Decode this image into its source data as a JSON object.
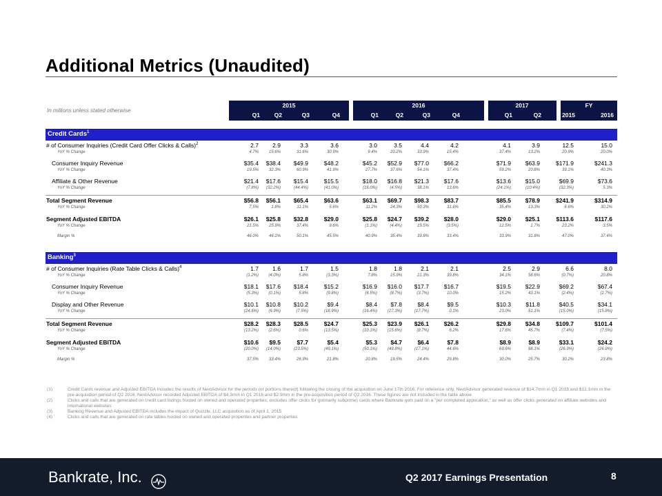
{
  "title": "Additional Metrics (Unaudited)",
  "note": "In millions unless stated otherwise",
  "header": {
    "years": [
      "2015",
      "2016",
      "2017",
      "FY"
    ],
    "quarters": [
      "Q1",
      "Q2",
      "Q3",
      "Q4",
      "Q1",
      "Q2",
      "Q3",
      "Q4",
      "Q1",
      "Q2",
      "2015",
      "2016"
    ]
  },
  "sections": [
    {
      "label": "Credit Cards",
      "sup": "1",
      "rows": [
        {
          "label": "# of Consumer Inquiries (Credit Card Offer Clicks & Calls)",
          "sup": "2",
          "style": "normal",
          "values": [
            "2.7",
            "2.9",
            "3.3",
            "3.6",
            "3.0",
            "3.5",
            "4.4",
            "4.2",
            "4.1",
            "3.9",
            "12.5",
            "15.0"
          ]
        },
        {
          "label": "YoY % Change",
          "style": "sub",
          "values": [
            "4.7%",
            "15.6%",
            "31.6%",
            "30.9%",
            "9.4%",
            "20.2%",
            "33.9%",
            "15.4%",
            "37.4%",
            "13.2%",
            "20.9%",
            "20.0%"
          ]
        },
        {
          "label": "Consumer Inquiry Revenue",
          "style": "indent",
          "values": [
            "$35.4",
            "$38.4",
            "$49.9",
            "$48.2",
            "$45.2",
            "$52.9",
            "$77.0",
            "$66.2",
            "$71.9",
            "$63.9",
            "$171.9",
            "$241.3"
          ]
        },
        {
          "label": "YoY % Change",
          "style": "sub",
          "values": [
            "19.5%",
            "32.3%",
            "60.9%",
            "41.9%",
            "27.7%",
            "37.6%",
            "54.1%",
            "37.4%",
            "59.2%",
            "20.8%",
            "39.1%",
            "40.3%"
          ]
        },
        {
          "label": "Affiliate & Other Revenue",
          "style": "indent",
          "values": [
            "$21.4",
            "$17.6",
            "$15.4",
            "$15.5",
            "$18.0",
            "$16.8",
            "$21.3",
            "$17.6",
            "$13.6",
            "$15.0",
            "$69.9",
            "$73.6"
          ]
        },
        {
          "label": "YoY % Change",
          "style": "sub",
          "values": [
            "(7.8%)",
            "(32.2%)",
            "(44.4%)",
            "(41.0%)",
            "(16.0%)",
            "(4.5%)",
            "38.1%",
            "13.6%",
            "(24.1%)",
            "(10.4%)",
            "(32.3%)",
            "5.3%"
          ]
        },
        {
          "label": "Total Segment Revenue",
          "style": "bold",
          "values": [
            "$56.8",
            "$56.1",
            "$65.4",
            "$63.6",
            "$63.1",
            "$69.7",
            "$98.3",
            "$83.7",
            "$85.5",
            "$78.9",
            "$241.9",
            "$314.9"
          ]
        },
        {
          "label": "YoY % Change",
          "style": "sub",
          "values": [
            "7.5%",
            "1.8%",
            "11.1%",
            "5.6%",
            "11.2%",
            "24.3%",
            "50.3%",
            "31.6%",
            "35.4%",
            "13.3%",
            "6.6%",
            "30.2%"
          ]
        },
        {
          "label": "Segment Adjusted EBITDA",
          "style": "bold",
          "values": [
            "$26.1",
            "$25.8",
            "$32.8",
            "$29.0",
            "$25.8",
            "$24.7",
            "$39.2",
            "$28.0",
            "$29.0",
            "$25.1",
            "$113.6",
            "$117.6"
          ]
        },
        {
          "label": "YoY % Change",
          "style": "sub",
          "values": [
            "21.5%",
            "25.9%",
            "37.4%",
            "9.6%",
            "(1.1%)",
            "(4.4%)",
            "19.5%",
            "(3.5%)",
            "12.5%",
            "1.7%",
            "23.2%",
            "3.5%"
          ]
        },
        {
          "label": "Margin %",
          "style": "sub",
          "values": [
            "46.0%",
            "46.1%",
            "50.1%",
            "45.5%",
            "40.9%",
            "35.4%",
            "39.8%",
            "33.4%",
            "33.9%",
            "31.8%",
            "47.0%",
            "37.4%"
          ]
        }
      ]
    },
    {
      "label": "Banking",
      "sup": "3",
      "rows": [
        {
          "label": "# of Consumer Inquiries (Rate Table Clicks & Calls)",
          "sup": "4",
          "style": "normal",
          "values": [
            "1.7",
            "1.6",
            "1.7",
            "1.5",
            "1.8",
            "1.8",
            "2.1",
            "2.1",
            "2.5",
            "2.9",
            "6.6",
            "8.0"
          ]
        },
        {
          "label": "YoY % Change",
          "style": "sub",
          "values": [
            "(1.2%)",
            "(4.0%)",
            "5.8%",
            "(3.3%)",
            "7.8%",
            "15.9%",
            "21.3%",
            "39.8%",
            "34.1%",
            "58.6%",
            "(0.7%)",
            "20.8%"
          ]
        },
        {
          "label": "Consumer Inquiry Revenue",
          "style": "indent",
          "values": [
            "$18.1",
            "$17.6",
            "$18.4",
            "$15.2",
            "$16.9",
            "$16.0",
            "$17.7",
            "$16.7",
            "$19.5",
            "$22.9",
            "$69.2",
            "$67.4"
          ]
        },
        {
          "label": "YoY % Change",
          "style": "sub",
          "values": [
            "(5.3%)",
            "(0.1%)",
            "5.8%",
            "(9.8%)",
            "(6.5%)",
            "(8.7%)",
            "(3.7%)",
            "10.0%",
            "15.2%",
            "43.1%",
            "(2.4%)",
            "(2.7%)"
          ]
        },
        {
          "label": "Display and Other Revenue",
          "style": "indent",
          "values": [
            "$10.1",
            "$10.8",
            "$10.2",
            "$9.4",
            "$8.4",
            "$7.8",
            "$8.4",
            "$9.5",
            "$10.3",
            "$11.8",
            "$40.5",
            "$34.1"
          ]
        },
        {
          "label": "YoY % Change",
          "style": "sub",
          "values": [
            "(24.6%)",
            "(6.9%)",
            "(7.5%)",
            "(18.9%)",
            "(16.4%)",
            "(27.3%)",
            "(17.7%)",
            "0.1%",
            "23.0%",
            "51.1%",
            "(15.0%)",
            "(15.8%)"
          ]
        },
        {
          "label": "Total Segment Revenue",
          "style": "bold",
          "values": [
            "$28.2",
            "$28.3",
            "$28.5",
            "$24.7",
            "$25.3",
            "$23.9",
            "$26.1",
            "$26.2",
            "$29.8",
            "$34.8",
            "$109.7",
            "$101.4"
          ]
        },
        {
          "label": "YoY % Change",
          "style": "sub",
          "values": [
            "(13.2%)",
            "(2.6%)",
            "0.6%",
            "(13.5%)",
            "(10.1%)",
            "(15.6%)",
            "(8.7%)",
            "6.2%",
            "17.6%",
            "45.7%",
            "(7.4%)",
            "(7.5%)"
          ]
        },
        {
          "label": "Segment Adjusted EBITDA",
          "style": "bold",
          "values": [
            "$10.6",
            "$9.5",
            "$7.7",
            "$5.4",
            "$5.3",
            "$4.7",
            "$6.4",
            "$7.8",
            "$8.9",
            "$8.9",
            "$33.1",
            "$24.2"
          ]
        },
        {
          "label": "YoY % Change",
          "style": "sub",
          "values": [
            "(20.0%)",
            "(14.0%)",
            "(23.5%)",
            "(49.1%)",
            "(50.1%)",
            "(49.8%)",
            "(17.1%)",
            "44.6%",
            "69.6%",
            "88.1%",
            "(26.3%)",
            "(26.9%)"
          ]
        },
        {
          "label": "Margin %",
          "style": "sub",
          "values": [
            "37.5%",
            "33.4%",
            "26.9%",
            "21.8%",
            "20.8%",
            "19.5%",
            "24.4%",
            "29.8%",
            "30.0%",
            "25.7%",
            "30.2%",
            "23.8%"
          ]
        }
      ]
    }
  ],
  "footnotes": [
    {
      "num": "(1)",
      "text": "Credit Cards revenue and Adjusted EBITDA includes the results of NextAdvisor for the periods (or portions thereof) following the closing of the acquisition on June 17th 2016. For reference only, NextAdvisor generated revenue of $14.7mm in Q1 2016 and $12.1mm in the pre-acquisition period of Q2 2016. NextAdvisor recorded Adjusted EBITDA of $4.3mm in Q1 2016 and $2.9mm in the pre-acquisition period of Q2 2016. These figures are not included in the table above"
    },
    {
      "num": "(2)",
      "text": "Clicks and calls that are generated on credit card listings hosted on owned and operated properties; excludes offer clicks for (primarily subprime) cards where Bankrate gets paid on a \"per completed application,\" as well as offer clicks generated on affiliate websites and international websites"
    },
    {
      "num": "(3)",
      "text": "Banking Revenue and Adjusted EBITDA includes the impact of Quizzle, LLC acquisition as of April 1, 2015"
    },
    {
      "num": "(4)",
      "text": "Clicks and calls that are generated on rate tables hosted on owned and operated properties and partner properties"
    }
  ],
  "footer": {
    "logo": "Bankrate, Inc.",
    "presentation": "Q2 2017 Earnings Presentation",
    "page": "8"
  }
}
